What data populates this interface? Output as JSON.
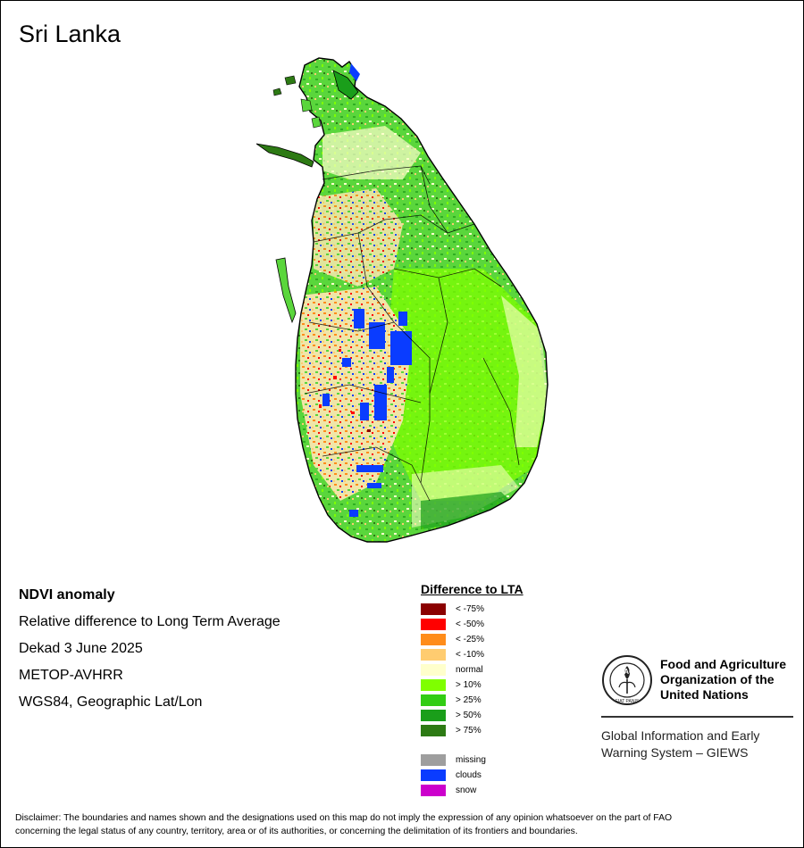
{
  "title": "Sri Lanka",
  "info": {
    "line1": "NDVI anomaly",
    "line2": "Relative difference to Long Term Average",
    "line3": "Dekad 3 June 2025",
    "line4": "METOP-AVHRR",
    "line5": "WGS84, Geographic Lat/Lon"
  },
  "legend": {
    "title": "Difference to LTA",
    "classes": [
      {
        "label": "< -75%",
        "color": "#8b0000"
      },
      {
        "label": "< -50%",
        "color": "#ff0000"
      },
      {
        "label": "< -25%",
        "color": "#ff8c1a"
      },
      {
        "label": "< -10%",
        "color": "#ffcc70"
      },
      {
        "label": "normal",
        "color": "#ffffcc"
      },
      {
        "label": "> 10%",
        "color": "#7fff00"
      },
      {
        "label": "> 25%",
        "color": "#32cd14"
      },
      {
        "label": "> 50%",
        "color": "#1a9e1a"
      },
      {
        "label": "> 75%",
        "color": "#2d7a14"
      }
    ],
    "extra": [
      {
        "label": "missing",
        "color": "#9e9e9e"
      },
      {
        "label": "clouds",
        "color": "#0a3cff"
      },
      {
        "label": "snow",
        "color": "#cc00cc"
      }
    ]
  },
  "organization": {
    "name_line1": "Food and Agriculture",
    "name_line2": "Organization of the",
    "name_line3": "United Nations",
    "logo_text": "FAO",
    "logo_motto": "FIAT PANIS",
    "system_line1": "Global Information and Early",
    "system_line2": "Warning System – GIEWS"
  },
  "disclaimer_line1": "Disclaimer: The boundaries and names shown and the designations used on this map do not imply the expression of any opinion whatsoever on the part of FAO",
  "disclaimer_line2": "concerning the legal status of any country, territory, area or of its authorities, or concerning the delimitation of its frontiers and boundaries.",
  "colors": {
    "land_green": "#4fd33a",
    "coast_outline": "#000000",
    "water_lagoon": "#2d7a14"
  }
}
